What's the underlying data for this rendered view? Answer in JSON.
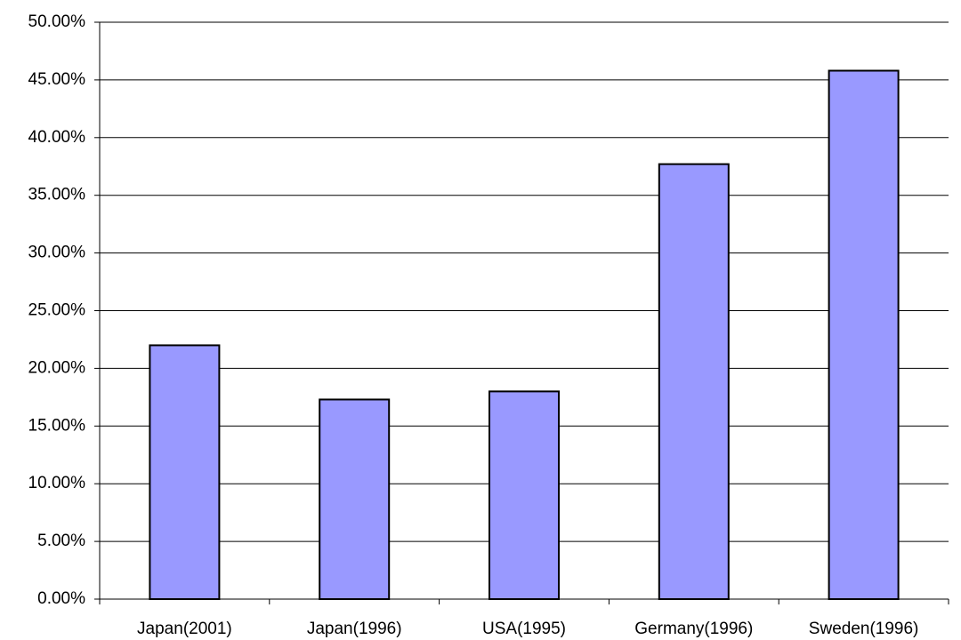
{
  "chart_data": {
    "type": "bar",
    "categories": [
      "Japan(2001)",
      "Japan(1996)",
      "USA(1995)",
      "Germany(1996)",
      "Sweden(1996)"
    ],
    "values": [
      22,
      17.3,
      18,
      37.7,
      45.8
    ],
    "color": "#9999ff",
    "ylim": [
      0,
      50
    ],
    "yticks": [
      {
        "value": 0,
        "label": "0.00%"
      },
      {
        "value": 5,
        "label": "5.00%"
      },
      {
        "value": 10,
        "label": "10.00%"
      },
      {
        "value": 15,
        "label": "15.00%"
      },
      {
        "value": 20,
        "label": "20.00%"
      },
      {
        "value": 25,
        "label": "25.00%"
      },
      {
        "value": 30,
        "label": "30.00%"
      },
      {
        "value": 35,
        "label": "35.00%"
      },
      {
        "value": 40,
        "label": "40.00%"
      },
      {
        "value": 45,
        "label": "45.00%"
      },
      {
        "value": 50,
        "label": "50.00%"
      }
    ],
    "grid": true
  }
}
